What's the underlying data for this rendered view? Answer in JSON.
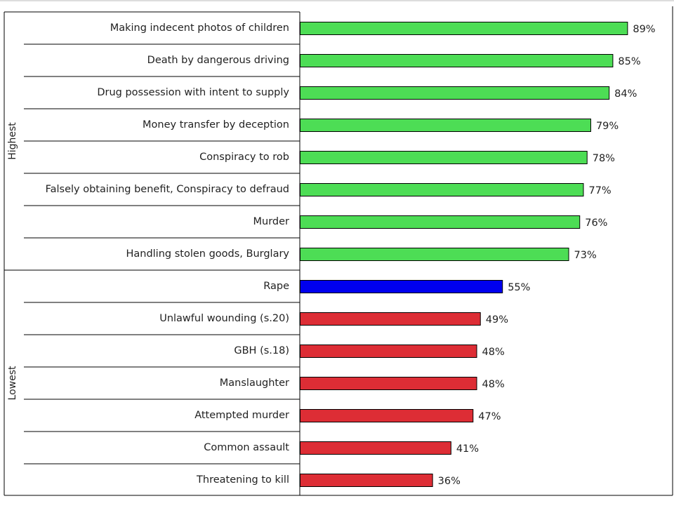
{
  "chart_data": {
    "type": "bar",
    "orientation": "horizontal",
    "title": "",
    "xlabel": "",
    "ylabel": "",
    "xlim": [
      0,
      100
    ],
    "grid": false,
    "legend": "none",
    "groups": [
      {
        "label": "Highest",
        "start": 0,
        "end": 7
      },
      {
        "label": "Lowest",
        "start": 8,
        "end": 14
      }
    ],
    "categories": [
      "Making indecent photos of children",
      "Death by dangerous driving",
      "Drug possession with intent to supply",
      "Money transfer by deception",
      "Conspiracy to rob",
      "Falsely obtaining benefit, Conspiracy to defraud",
      "Murder",
      "Handling stolen goods, Burglary",
      "Rape",
      "Unlawful wounding (s.20)",
      "GBH (s.18)",
      "Manslaughter",
      "Attempted murder",
      "Common assault",
      "Threatening to kill"
    ],
    "values": [
      89,
      85,
      84,
      79,
      78,
      77,
      76,
      73,
      55,
      49,
      48,
      48,
      47,
      41,
      36
    ],
    "value_labels": [
      "89%",
      "85%",
      "84%",
      "79%",
      "78%",
      "77%",
      "76%",
      "73%",
      "55%",
      "49%",
      "48%",
      "48%",
      "47%",
      "41%",
      "36%"
    ],
    "colors": [
      "#4ddd55",
      "#4ddd55",
      "#4ddd55",
      "#4ddd55",
      "#4ddd55",
      "#4ddd55",
      "#4ddd55",
      "#4ddd55",
      "#0000ee",
      "#dd2d35",
      "#dd2d35",
      "#dd2d35",
      "#dd2d35",
      "#dd2d35",
      "#dd2d35"
    ]
  }
}
